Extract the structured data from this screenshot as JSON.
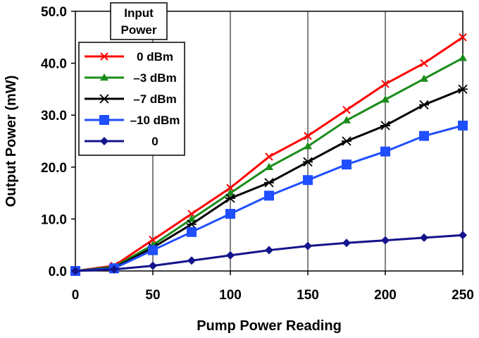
{
  "chart_data": {
    "type": "line",
    "xlabel": "Pump Power Reading",
    "ylabel": "Output Power (mW)",
    "xlim": [
      0,
      250
    ],
    "ylim": [
      0,
      50
    ],
    "x_ticks": [
      "0",
      "50",
      "100",
      "150",
      "200",
      "250"
    ],
    "y_ticks": [
      "0.0",
      "10.0",
      "20.0",
      "30.0",
      "40.0",
      "50.0"
    ],
    "grid": "vertical",
    "legend": {
      "position": "top-left",
      "title_lines": [
        "Input",
        "Power"
      ]
    },
    "x": [
      0,
      25,
      50,
      75,
      100,
      125,
      150,
      175,
      200,
      225,
      250
    ],
    "series": [
      {
        "name": "0 dBm",
        "color": "#ff0000",
        "marker": "x",
        "values": [
          0,
          1,
          6,
          11,
          16,
          22,
          26,
          31,
          36,
          40,
          45
        ]
      },
      {
        "name": "–3 dBm",
        "color": "#1a8c1a",
        "marker": "triangle",
        "values": [
          0,
          0.8,
          5,
          10,
          15,
          20,
          24,
          29,
          33,
          37,
          41
        ]
      },
      {
        "name": "–7 dBm",
        "color": "#000000",
        "marker": "star",
        "values": [
          0,
          0.6,
          4.5,
          9,
          14,
          17,
          21,
          25,
          28,
          32,
          35
        ]
      },
      {
        "name": "–10 dBm",
        "color": "#1f4fff",
        "marker": "square",
        "values": [
          0,
          0.5,
          4,
          7.5,
          11,
          14.5,
          17.5,
          20.5,
          23,
          26,
          28
        ]
      },
      {
        "name": "0",
        "color": "#14148c",
        "marker": "diamond",
        "values": [
          0,
          0.3,
          1,
          2,
          3,
          4,
          4.8,
          5.4,
          5.9,
          6.4,
          6.9
        ]
      }
    ]
  }
}
